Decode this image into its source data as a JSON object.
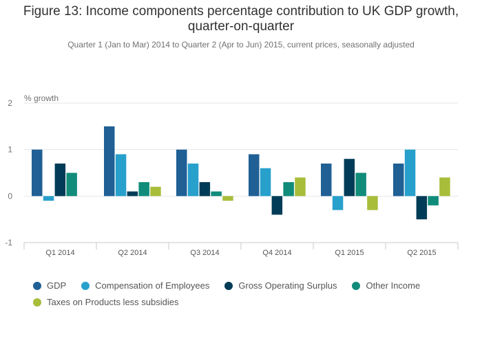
{
  "chart_data": {
    "type": "bar",
    "title_line1": "Figure 13: Income components percentage contribution to UK GDP growth,",
    "title_line2": "quarter-on-quarter",
    "subtitle": "Quarter 1 (Jan to Mar) 2014 to Quarter 2 (Apr to Jun) 2015, current prices, seasonally adjusted",
    "ylabel": "% growth",
    "xlabel": "",
    "ylim": [
      -1,
      2
    ],
    "yticks": [
      2,
      1,
      0,
      -1
    ],
    "legend_position": "bottom",
    "categories": [
      "Q1 2014",
      "Q2 2014",
      "Q3 2014",
      "Q4 2014",
      "Q1 2015",
      "Q2 2015"
    ],
    "series": [
      {
        "name": "GDP",
        "color": "#206095",
        "values": [
          1.0,
          1.5,
          1.0,
          0.9,
          0.7,
          0.7
        ]
      },
      {
        "name": "Compensation of Employees",
        "color": "#27a0cc",
        "values": [
          -0.1,
          0.9,
          0.7,
          0.6,
          -0.3,
          1.0
        ]
      },
      {
        "name": "Gross Operating Surplus",
        "color": "#003c57",
        "values": [
          0.7,
          0.1,
          0.3,
          -0.4,
          0.8,
          -0.5
        ]
      },
      {
        "name": "Other Income",
        "color": "#118c7b",
        "values": [
          0.5,
          0.3,
          0.1,
          0.3,
          0.5,
          -0.2
        ]
      },
      {
        "name": "Taxes on Products less subsidies",
        "color": "#a8bd3a",
        "values": [
          0.0,
          0.2,
          -0.1,
          0.4,
          -0.3,
          0.4
        ]
      }
    ]
  }
}
